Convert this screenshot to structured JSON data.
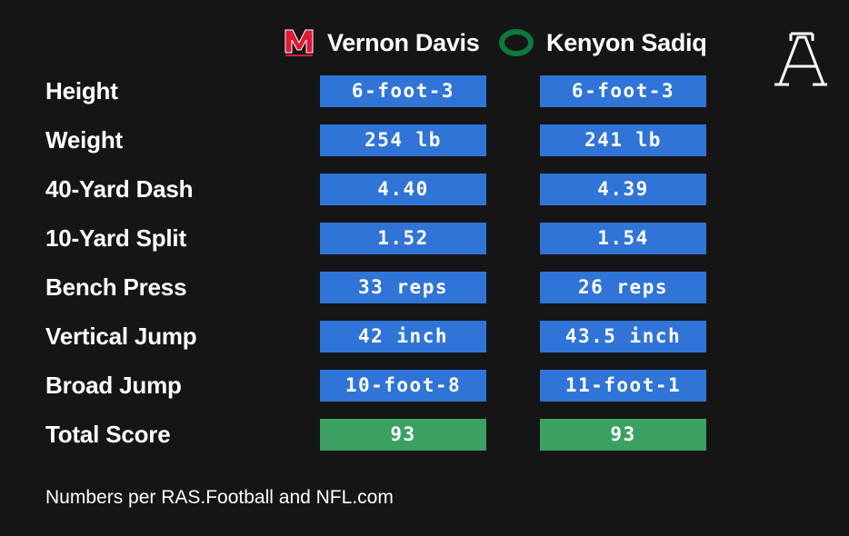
{
  "players": [
    {
      "name": "Vernon Davis",
      "school_logo": "maryland-m-logo",
      "logo_color": "#e21833"
    },
    {
      "name": "Kenyon Sadiq",
      "school_logo": "oregon-o-logo",
      "logo_color": "#0b7a3a"
    }
  ],
  "brand_logo": "the-athletic-logo",
  "rows": [
    {
      "label": "Height",
      "a": "6-foot-3",
      "b": "6-foot-3"
    },
    {
      "label": "Weight",
      "a": "254 lb",
      "b": "241 lb"
    },
    {
      "label": "40-Yard Dash",
      "a": "4.40",
      "b": "4.39"
    },
    {
      "label": "10-Yard Split",
      "a": "1.52",
      "b": "1.54"
    },
    {
      "label": "Bench Press",
      "a": "33 reps",
      "b": "26 reps"
    },
    {
      "label": "Vertical Jump",
      "a": "42 inch",
      "b": "43.5 inch"
    },
    {
      "label": "Broad Jump",
      "a": "10-foot-8",
      "b": "11-foot-1"
    },
    {
      "label": "Total Score",
      "a": "93",
      "b": "93"
    }
  ],
  "colors": {
    "background": "#151515",
    "stat_cell": "#2f74d6",
    "score_cell": "#3aa162"
  },
  "footnote": "Numbers per RAS.Football and NFL.com"
}
